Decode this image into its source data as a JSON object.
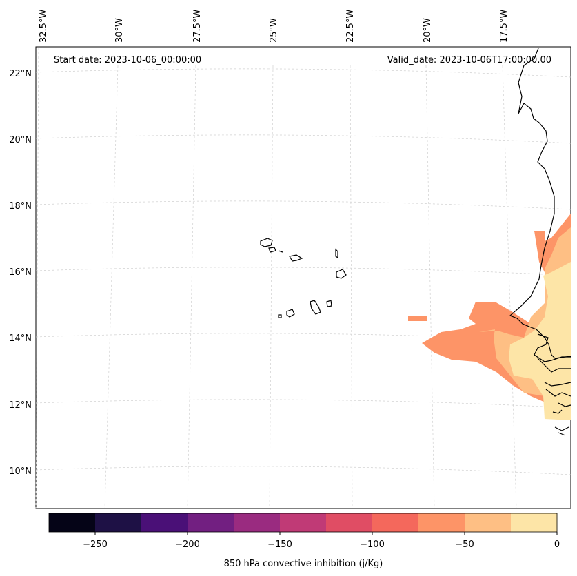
{
  "header": {
    "start_date": "Start date: 2023-10-06_00:00:00",
    "valid_date": "Valid_date: 2023-10-06T17:00:00.00"
  },
  "map": {
    "lon_labels": [
      "32.5°W",
      "30°W",
      "27.5°W",
      "25°W",
      "22.5°W",
      "20°W",
      "17.5°W"
    ],
    "lat_labels": [
      "22°N",
      "20°N",
      "18°N",
      "16°N",
      "14°N",
      "12°N",
      "10°N"
    ],
    "grid": true,
    "coastline_color": "#000000"
  },
  "colorbar": {
    "label": "850 hPa convective inhibition (j/Kg)",
    "ticks": [
      "−250",
      "−200",
      "−150",
      "−100",
      "−50",
      "0"
    ],
    "colors": [
      "#050417",
      "#1e1145",
      "#4a1077",
      "#721f81",
      "#9a2b80",
      "#c03a76",
      "#e04d64",
      "#f4685c",
      "#fd9467",
      "#febf84",
      "#fde5a7"
    ]
  },
  "legend_levels": [
    {
      "range": "0 to -25",
      "color": "#fde5a7"
    },
    {
      "range": "-25 to -50",
      "color": "#febf84"
    },
    {
      "range": "-50 to -75",
      "color": "#fd9467"
    }
  ]
}
